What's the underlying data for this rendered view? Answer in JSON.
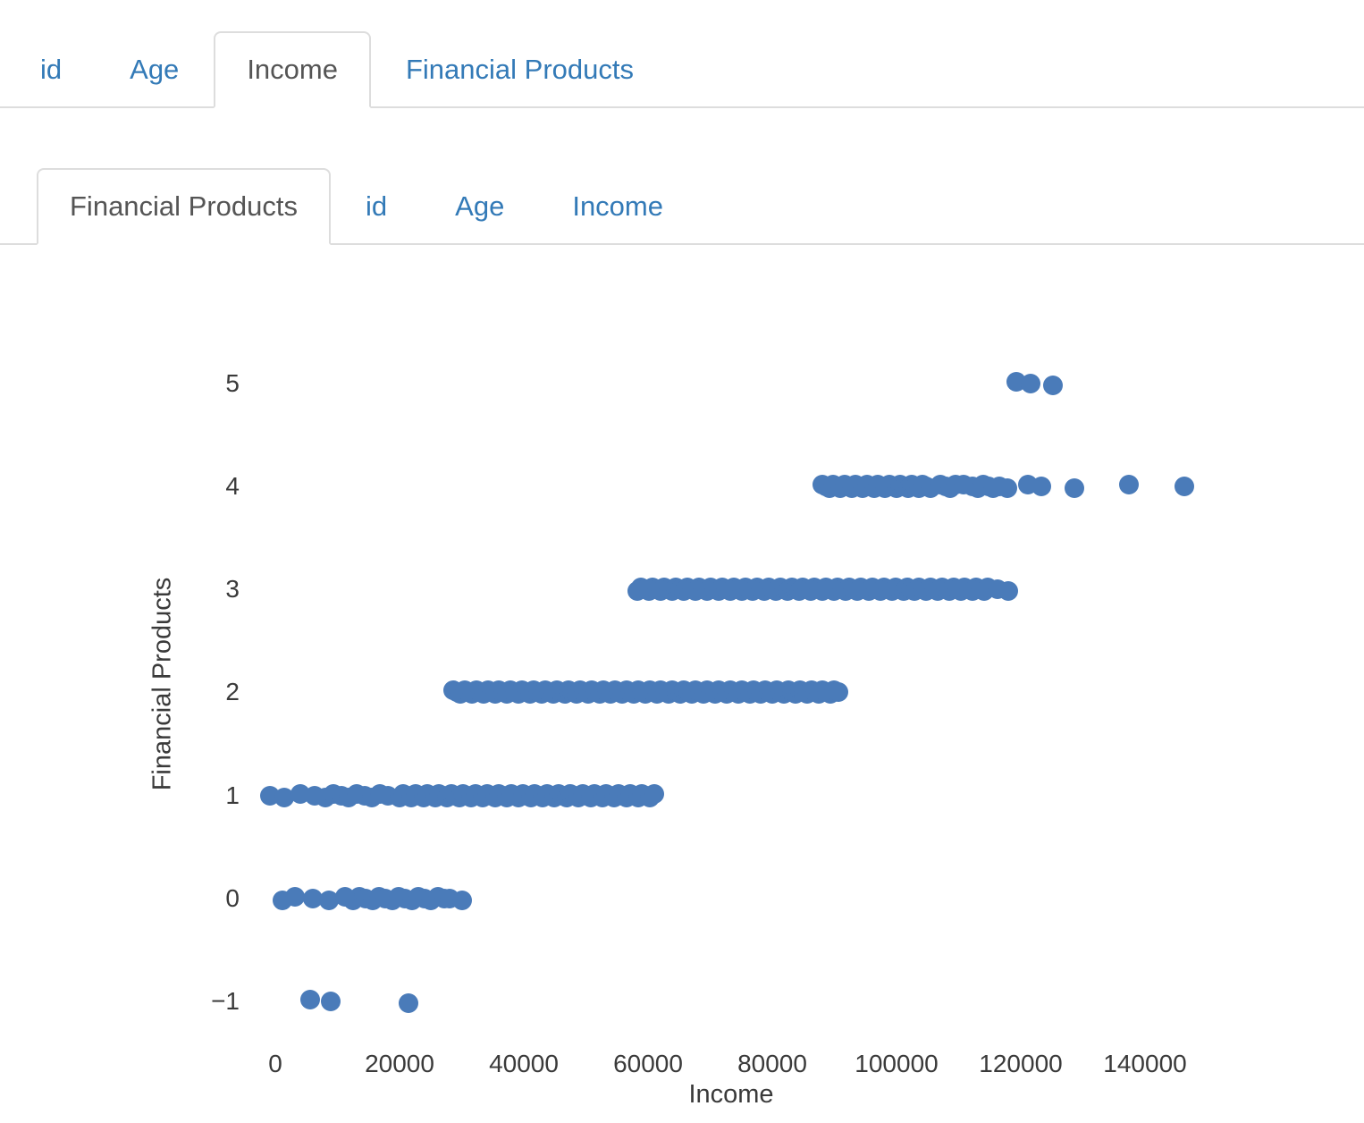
{
  "tabs_x": {
    "items": [
      {
        "label": "id",
        "active": false
      },
      {
        "label": "Age",
        "active": false
      },
      {
        "label": "Income",
        "active": true
      },
      {
        "label": "Financial Products",
        "active": false
      }
    ]
  },
  "tabs_y": {
    "items": [
      {
        "label": "Financial Products",
        "active": true
      },
      {
        "label": "id",
        "active": false
      },
      {
        "label": "Age",
        "active": false
      },
      {
        "label": "Income",
        "active": false
      }
    ]
  },
  "colors": {
    "link_blue": "#337ab7",
    "active_tab_text": "#555555",
    "tab_border": "#dddddd",
    "marker": "#4a7bb9",
    "axis_text": "#3a3a3a"
  },
  "chart_data": {
    "type": "scatter",
    "title": "",
    "xlabel": "Income",
    "ylabel": "Financial Products",
    "xlim": [
      -10000,
      160000
    ],
    "ylim": [
      -2,
      6
    ],
    "grid": false,
    "legend": "none",
    "marker_color": "#4a7bb9",
    "x_ticks": [
      {
        "value": 0,
        "label": "0"
      },
      {
        "value": 20000,
        "label": "20000"
      },
      {
        "value": 40000,
        "label": "40000"
      },
      {
        "value": 60000,
        "label": "60000"
      },
      {
        "value": 80000,
        "label": "80000"
      },
      {
        "value": 100000,
        "label": "100000"
      },
      {
        "value": 120000,
        "label": "120000"
      },
      {
        "value": 140000,
        "label": "140000"
      }
    ],
    "y_ticks": [
      {
        "value": 5,
        "label": "5"
      },
      {
        "value": 4,
        "label": "4"
      },
      {
        "value": 3,
        "label": "3"
      },
      {
        "value": 2,
        "label": "2"
      },
      {
        "value": 1,
        "label": "1"
      },
      {
        "value": 0,
        "label": "0"
      },
      {
        "value": -1,
        "label": "−1"
      }
    ],
    "series": [
      {
        "y": 5,
        "clusters": [],
        "points": [
          119300,
          121600,
          125200
        ]
      },
      {
        "y": 4,
        "clusters": [
          [
            88000,
            105500,
            600
          ],
          [
            107000,
            109700,
            850
          ],
          [
            112200,
            115800,
            850
          ]
        ],
        "points": [
          110800,
          116600,
          117900,
          121100,
          123300,
          128600,
          137400,
          146300
        ]
      },
      {
        "y": 3,
        "clusters": [
          [
            58300,
            114500,
            620
          ]
        ],
        "points": [
          116300,
          118000
        ]
      },
      {
        "y": 2,
        "clusters": [
          [
            28600,
            90500,
            620
          ]
        ],
        "points": []
      },
      {
        "y": 1,
        "clusters": [
          [
            8100,
            17600,
            1250
          ],
          [
            20000,
            61000,
            640
          ]
        ],
        "points": [
          -800,
          1400,
          4000,
          6300
        ]
      },
      {
        "y": 0,
        "clusters": [
          [
            12500,
            27000,
            1050
          ]
        ],
        "points": [
          1100,
          3200,
          6000,
          8600,
          11200,
          28100,
          30000
        ]
      },
      {
        "y": -1,
        "clusters": [],
        "points": [
          5600,
          8900,
          21400
        ]
      }
    ]
  }
}
